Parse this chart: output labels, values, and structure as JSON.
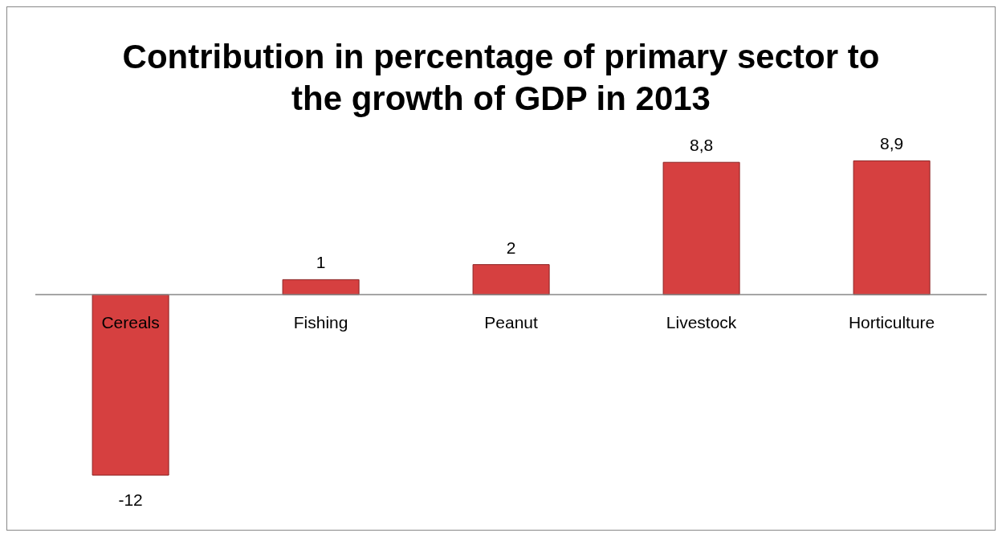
{
  "chart_data": {
    "type": "bar",
    "title": "Contribution in percentage of primary sector to the growth of GDP in 2013",
    "categories": [
      "Cereals",
      "Fishing",
      "Peanut",
      "Livestock",
      "Horticulture"
    ],
    "values": [
      -12,
      1,
      2,
      8.8,
      8.9
    ],
    "value_labels": [
      "-12",
      "1",
      "2",
      "8,8",
      "8,9"
    ],
    "color": "#d64040",
    "legend": false,
    "grid": false
  }
}
